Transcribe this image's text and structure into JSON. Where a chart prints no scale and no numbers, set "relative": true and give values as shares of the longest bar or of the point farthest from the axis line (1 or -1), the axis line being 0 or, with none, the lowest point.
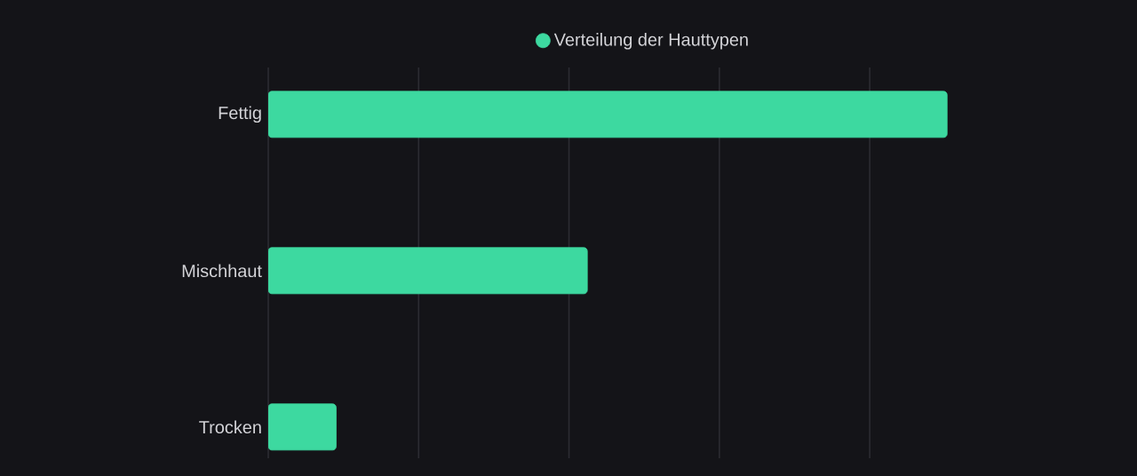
{
  "chart_data": {
    "type": "bar",
    "orientation": "horizontal",
    "relative": true,
    "categories": [
      "Fettig",
      "Mischhaut",
      "Trocken"
    ],
    "series": [
      {
        "name": "Verteilung der Hauttypen",
        "color": "#3dd9a0",
        "values": [
          1,
          0.47,
          0.1
        ]
      }
    ],
    "grid": "x",
    "legend": "top"
  }
}
